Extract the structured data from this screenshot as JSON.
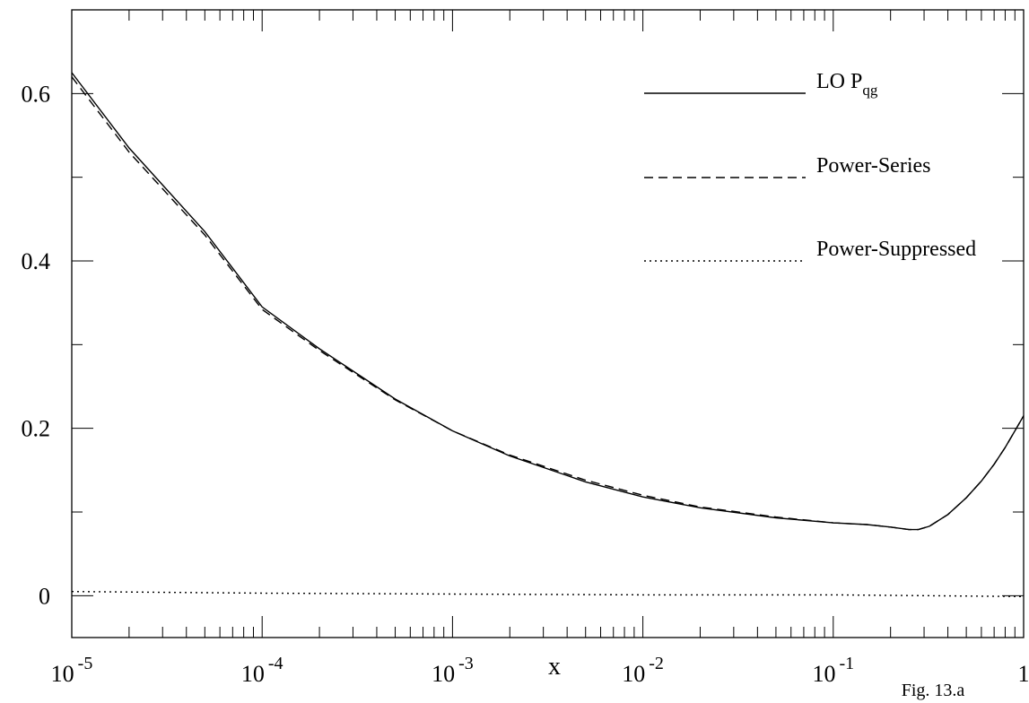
{
  "chart_data": {
    "type": "line",
    "xscale": "log",
    "xlim": [
      1e-05,
      1
    ],
    "ylim": [
      -0.05,
      0.7
    ],
    "xlabel": "x",
    "ylabel": "",
    "caption": "Fig. 13.a",
    "grid": false,
    "legend_position": "top-right",
    "x_ticks": [
      {
        "value": 1e-05,
        "base": "10",
        "exp": "-5"
      },
      {
        "value": 0.0001,
        "base": "10",
        "exp": "-4"
      },
      {
        "value": 0.001,
        "base": "10",
        "exp": "-3"
      },
      {
        "value": 0.01,
        "base": "10",
        "exp": "-2"
      },
      {
        "value": 0.1,
        "base": "10",
        "exp": "-1"
      },
      {
        "value": 1,
        "base": "1",
        "exp": ""
      }
    ],
    "y_ticks": [
      {
        "value": 0,
        "label": "0"
      },
      {
        "value": 0.2,
        "label": "0.2"
      },
      {
        "value": 0.4,
        "label": "0.4"
      },
      {
        "value": 0.6,
        "label": "0.6"
      }
    ],
    "series": [
      {
        "name": "LO P",
        "name_sub": "qg",
        "dash": "solid",
        "x": [
          1e-05,
          2e-05,
          5e-05,
          0.0001,
          0.0002,
          0.0005,
          0.001,
          0.002,
          0.005,
          0.01,
          0.02,
          0.05,
          0.1,
          0.15,
          0.2,
          0.25,
          0.28,
          0.32,
          0.4,
          0.5,
          0.6,
          0.7,
          0.8,
          0.9,
          1.0
        ],
        "y": [
          0.625,
          0.535,
          0.435,
          0.345,
          0.295,
          0.235,
          0.197,
          0.167,
          0.136,
          0.118,
          0.105,
          0.093,
          0.087,
          0.085,
          0.082,
          0.079,
          0.079,
          0.083,
          0.097,
          0.117,
          0.137,
          0.157,
          0.177,
          0.197,
          0.215
        ]
      },
      {
        "name": "Power-Series",
        "dash": "dashed",
        "x": [
          1e-05,
          2e-05,
          5e-05,
          0.0001,
          0.0002,
          0.0005,
          0.001,
          0.002,
          0.005,
          0.01,
          0.02,
          0.05,
          0.1,
          0.15,
          0.2,
          0.25,
          0.28,
          0.32,
          0.4,
          0.5,
          0.6,
          0.7,
          0.8,
          0.9,
          1.0
        ],
        "y": [
          0.62,
          0.53,
          0.431,
          0.342,
          0.293,
          0.234,
          0.197,
          0.168,
          0.138,
          0.12,
          0.106,
          0.094,
          0.087,
          0.085,
          0.082,
          0.079,
          0.079,
          0.083,
          0.097,
          0.117,
          0.137,
          0.157,
          0.177,
          0.197,
          0.215
        ]
      },
      {
        "name": "Power-Suppressed",
        "dash": "dotted",
        "x": [
          1e-05,
          0.0001,
          0.001,
          0.01,
          0.1,
          0.3,
          1.0
        ],
        "y": [
          0.005,
          0.003,
          0.002,
          0.001,
          0.001,
          0.0,
          -0.001
        ]
      }
    ]
  }
}
